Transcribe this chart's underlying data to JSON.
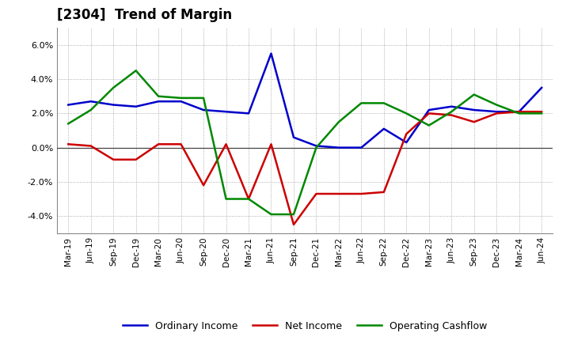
{
  "title": "[2304]  Trend of Margin",
  "x_labels": [
    "Mar-19",
    "Jun-19",
    "Sep-19",
    "Dec-19",
    "Mar-20",
    "Jun-20",
    "Sep-20",
    "Dec-20",
    "Mar-21",
    "Jun-21",
    "Sep-21",
    "Dec-21",
    "Mar-22",
    "Jun-22",
    "Sep-22",
    "Dec-22",
    "Mar-23",
    "Jun-23",
    "Sep-23",
    "Dec-23",
    "Mar-24",
    "Jun-24"
  ],
  "ordinary_income": [
    2.5,
    2.7,
    2.5,
    2.4,
    2.7,
    2.7,
    2.2,
    2.1,
    2.0,
    5.5,
    0.6,
    0.1,
    0.0,
    0.0,
    1.1,
    0.3,
    2.2,
    2.4,
    2.2,
    2.1,
    2.1,
    3.5
  ],
  "net_income": [
    0.2,
    0.1,
    -0.7,
    -0.7,
    0.2,
    0.2,
    -2.2,
    0.2,
    -3.0,
    0.2,
    -4.5,
    -2.7,
    -2.7,
    -2.7,
    -2.6,
    0.8,
    2.0,
    1.9,
    1.5,
    2.0,
    2.1,
    2.1
  ],
  "operating_cashflow": [
    1.4,
    2.2,
    3.5,
    4.5,
    3.0,
    2.9,
    2.9,
    -3.0,
    -3.0,
    -3.9,
    -3.9,
    0.0,
    1.5,
    2.6,
    2.6,
    2.0,
    1.3,
    2.1,
    3.1,
    2.5,
    2.0,
    2.0
  ],
  "ylim": [
    -5.0,
    7.0
  ],
  "yticks": [
    -4.0,
    -2.0,
    0.0,
    2.0,
    4.0,
    6.0
  ],
  "line_colors": {
    "ordinary_income": "#0000cc",
    "net_income": "#cc0000",
    "operating_cashflow": "#008800"
  },
  "line_width": 1.8,
  "background_color": "#ffffff",
  "grid_color": "#999999",
  "legend_labels": [
    "Ordinary Income",
    "Net Income",
    "Operating Cashflow"
  ]
}
